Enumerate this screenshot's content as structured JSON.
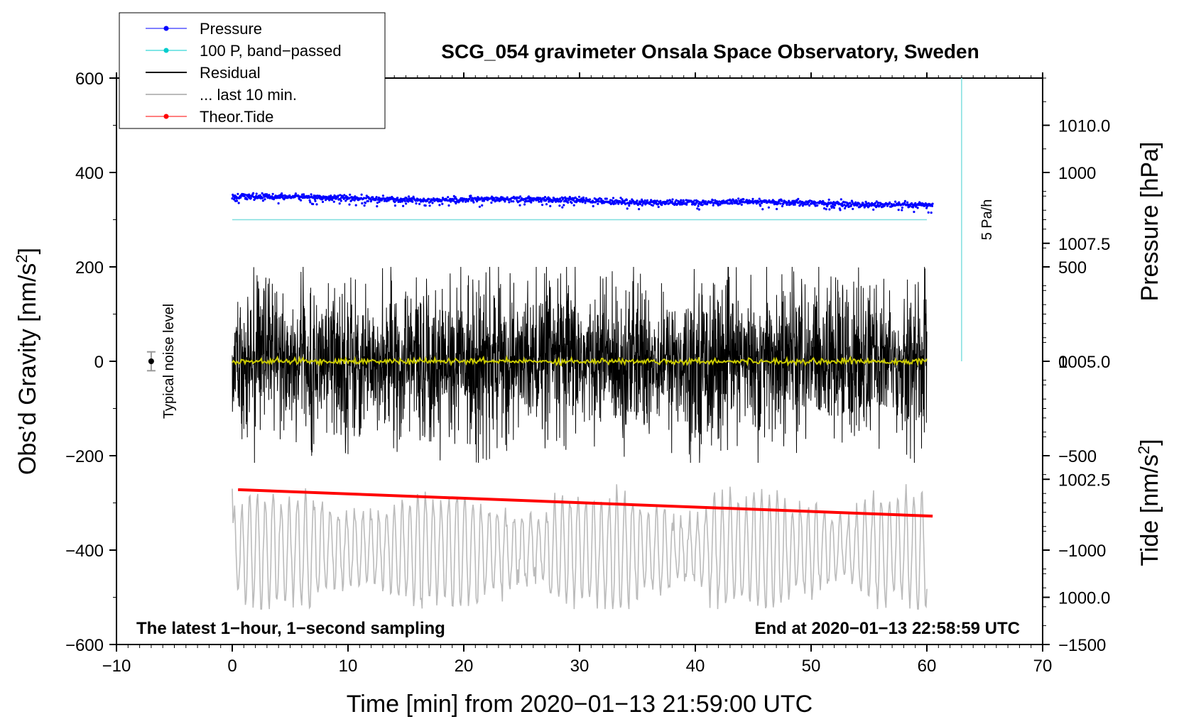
{
  "chart_data": {
    "type": "line",
    "title": "SCG_054 gravimeter Onsala Space Observatory, Sweden",
    "xlabel": "Time [min] from 2020−01−13 21:59:00 UTC",
    "ylabel_left": "Obs’d Gravity [nm/s²]",
    "ylabel_left_base": "Obs’d Gravity [nm/s",
    "ylabel_left_sup": "2",
    "ylabel_left_end": "]",
    "ylabel_right_pressure": "Pressure [hPa]",
    "ylabel_right_tide_base": "Tide [nm/s",
    "ylabel_right_tide_sup": "2",
    "ylabel_right_tide_end": "]",
    "xlim": [
      -10,
      70
    ],
    "ylim": [
      -600,
      600
    ],
    "pressure_range": [
      999.0,
      1011.0
    ],
    "tide_range": [
      -1500,
      1500
    ],
    "xticks": [
      -10,
      0,
      10,
      20,
      30,
      40,
      50,
      60,
      70
    ],
    "xtick_labels": [
      "−10",
      "0",
      "10",
      "20",
      "30",
      "40",
      "50",
      "60",
      "70"
    ],
    "yticks": [
      -600,
      -400,
      -200,
      0,
      200,
      400,
      600
    ],
    "ytick_labels": [
      "−600",
      "−400",
      "−200",
      "0",
      "200",
      "400",
      "600"
    ],
    "pressure_ticks": [
      1000.0,
      1002.5,
      1005.0,
      1007.5,
      1010.0
    ],
    "pressure_tick_labels": [
      "1000.0",
      "1002.5",
      "1005.0",
      "1007.5",
      "1010.0"
    ],
    "tide_ticks": [
      -1500,
      -1000,
      -500,
      0,
      500,
      1000
    ],
    "tide_tick_labels": [
      "−1500",
      "−1000",
      "−500",
      "0",
      "500",
      "1000"
    ],
    "legend": [
      {
        "label": "Pressure",
        "color": "#0000ff",
        "marker": true
      },
      {
        "label": "100 P, band−passed",
        "color": "#00cccc",
        "marker": true
      },
      {
        "label": "Residual",
        "color": "#000000",
        "marker": false
      },
      {
        "label": "... last 10 min.",
        "color": "#bbbbbb",
        "marker": false
      },
      {
        "label": "Theor.Tide",
        "color": "#ff0000",
        "marker": true
      }
    ],
    "series": [
      {
        "name": "Pressure",
        "color": "#0000ff",
        "x_range": [
          0,
          60.5
        ],
        "y_start": 348,
        "y_end": 332,
        "unit": "nm/s² plot units"
      },
      {
        "name": "100 P, band−passed",
        "color": "#7fdede",
        "x_range": [
          0,
          60
        ],
        "y_start": 300,
        "y_end": 300
      },
      {
        "name": "Residual",
        "color": "#000000",
        "x_range": [
          0,
          60
        ],
        "center": 0,
        "max": 200,
        "min": -215
      },
      {
        "name": "Residual smoothed",
        "color": "#cccc00",
        "x_range": [
          0,
          60
        ],
        "center": 0
      },
      {
        "name": "... last 10 min.",
        "color": "#bbbbbb",
        "x_range": [
          0,
          60
        ],
        "center": -400,
        "max": -210,
        "min": -525
      },
      {
        "name": "Theor.Tide",
        "color": "#ff0000",
        "x_range": [
          0.5,
          60.5
        ],
        "y_start": -272,
        "y_end": -328
      }
    ],
    "rate_bar": {
      "label": "5 Pa/h",
      "x": 63,
      "y_top": 600,
      "y_bottom": 0,
      "color": "#7fdede"
    },
    "noise_marker": {
      "label": "Typical noise level",
      "x": -7,
      "y": 0,
      "err": 20
    },
    "annotation_left": "The latest 1−hour, 1−second sampling",
    "annotation_right": "End at 2020−01−13 22:58:59 UTC"
  }
}
